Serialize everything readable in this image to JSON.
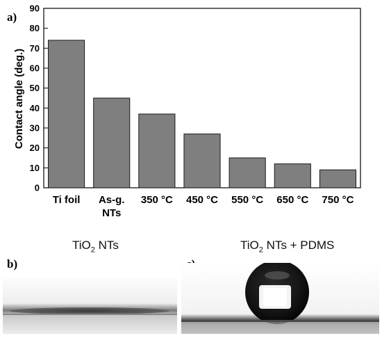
{
  "chart_data": {
    "type": "bar",
    "panel_label": "a)",
    "ylabel": "Contact angle (deg.)",
    "xlabel": "",
    "ylim": [
      0,
      90
    ],
    "yticks": [
      0,
      10,
      20,
      30,
      40,
      50,
      60,
      70,
      80,
      90
    ],
    "grid": false,
    "categories": [
      [
        "Ti foil"
      ],
      [
        "As-g.",
        "NTs"
      ],
      [
        "350 °C"
      ],
      [
        "450 °C"
      ],
      [
        "550 °C"
      ],
      [
        "650 °C"
      ],
      [
        "750 °C"
      ]
    ],
    "values": [
      74,
      45,
      37,
      27,
      15,
      12,
      9
    ],
    "bar_color": "#7f7f7f"
  },
  "photos": {
    "b": {
      "label": "b)",
      "title_main": "TiO",
      "title_sub": "2",
      "title_rest": " NTs"
    },
    "c": {
      "label": "c)",
      "title_main": "TiO",
      "title_sub": "2",
      "title_rest": " NTs + PDMS"
    }
  }
}
